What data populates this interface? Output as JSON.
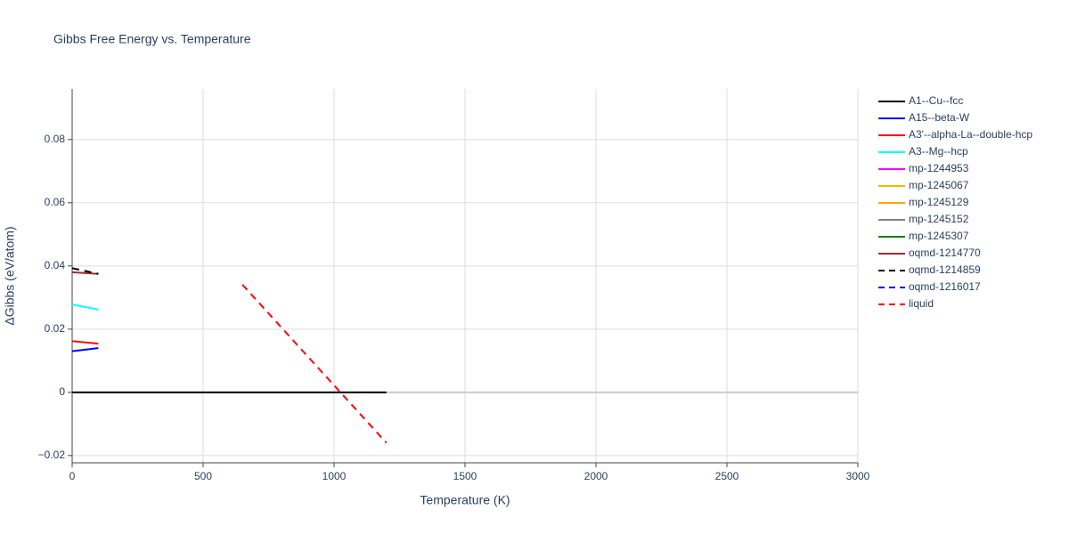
{
  "chart_data": {
    "type": "line",
    "title": "Gibbs Free Energy vs. Temperature",
    "xlabel": "Temperature (K)",
    "ylabel": "ΔGibbs (eV/atom)",
    "xlim": [
      0,
      3000
    ],
    "xticks": [
      0,
      500,
      1000,
      1500,
      2000,
      2500,
      3000
    ],
    "ylim": [
      -0.0223,
      0.096
    ],
    "yticks": [
      {
        "value": -0.02,
        "label": "−0.02"
      },
      0,
      0.02,
      0.04,
      0.06,
      0.08
    ],
    "grid": true,
    "legend": "right",
    "series": [
      {
        "name": "A1--Cu--fcc",
        "color": "#000000",
        "dash": "solid",
        "x": [
          0,
          1200
        ],
        "values": [
          0,
          0
        ]
      },
      {
        "name": "A15--beta-W",
        "color": "#0000ff",
        "dash": "solid",
        "x": [
          0,
          100
        ],
        "values": [
          0.013,
          0.014
        ]
      },
      {
        "name": "A3'--alpha-La--double-hcp",
        "color": "#ff0000",
        "dash": "solid",
        "x": [
          0,
          100
        ],
        "values": [
          0.0162,
          0.0154
        ]
      },
      {
        "name": "A3--Mg--hcp",
        "color": "#00ffff",
        "dash": "solid",
        "x": [
          0,
          100
        ],
        "values": [
          0.0278,
          0.0262
        ]
      },
      {
        "name": "mp-1244953",
        "color": "#ff00ff",
        "dash": "solid"
      },
      {
        "name": "mp-1245067",
        "color": "#f5b800",
        "dash": "solid"
      },
      {
        "name": "mp-1245129",
        "color": "#ffa500",
        "dash": "solid"
      },
      {
        "name": "mp-1245152",
        "color": "#808080",
        "dash": "solid"
      },
      {
        "name": "mp-1245307",
        "color": "#008000",
        "dash": "solid"
      },
      {
        "name": "oqmd-1214770",
        "color": "#a52a2a",
        "dash": "solid",
        "x": [
          0,
          100
        ],
        "values": [
          0.038,
          0.0375
        ]
      },
      {
        "name": "oqmd-1214859",
        "color": "#000000",
        "dash": "dash",
        "x": [
          0,
          100
        ],
        "values": [
          0.0393,
          0.0375
        ]
      },
      {
        "name": "oqmd-1216017",
        "color": "#0000ff",
        "dash": "dash"
      },
      {
        "name": "liquid",
        "color": "#ff0000",
        "dash": "dash",
        "x": [
          650,
          1200
        ],
        "values": [
          0.0341,
          -0.016
        ]
      }
    ]
  }
}
